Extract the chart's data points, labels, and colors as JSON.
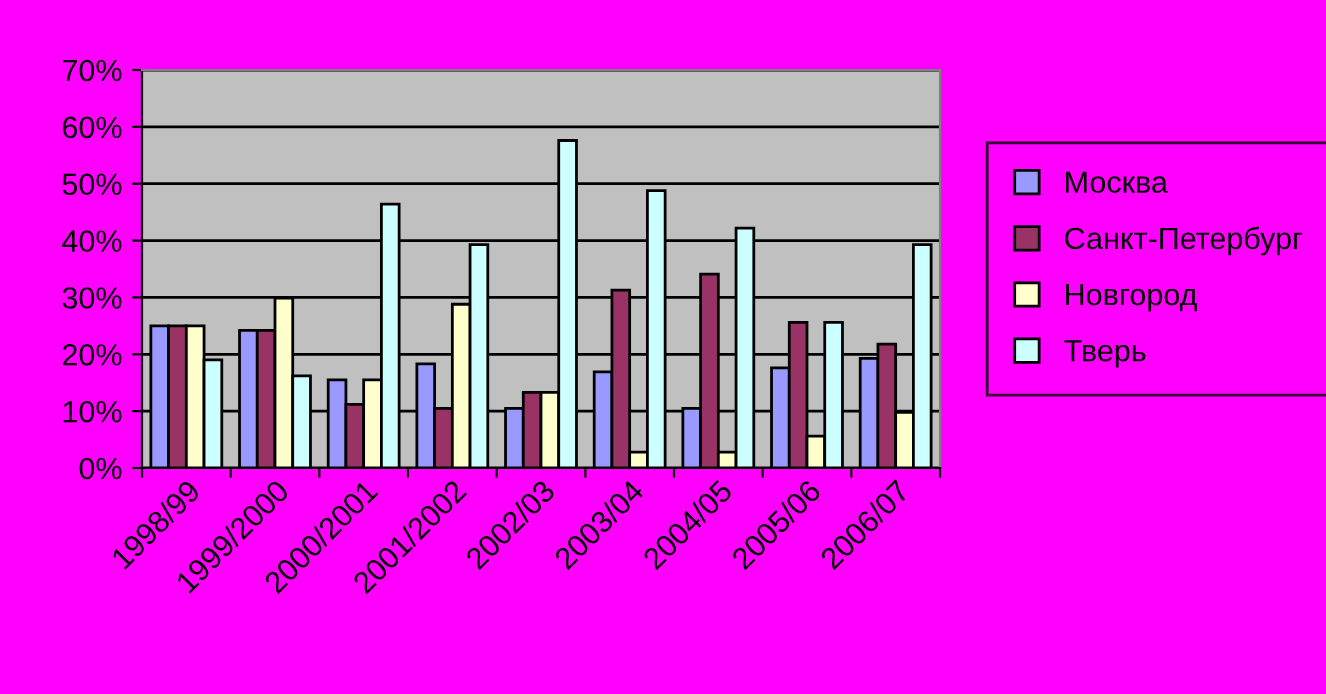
{
  "chart_data": {
    "type": "bar",
    "categories": [
      "1998/99",
      "1999/2000",
      "2000/2001",
      "2001/2002",
      "2002/03",
      "2003/04",
      "2004/05",
      "2005/06",
      "2006/07"
    ],
    "series": [
      {
        "name": "Москва",
        "color": "#9999ff",
        "values": [
          25,
          24.2,
          15.5,
          18.3,
          10.5,
          16.9,
          10.5,
          17.6,
          19.3
        ]
      },
      {
        "name": "Санкт-Петербург",
        "color": "#993366",
        "values": [
          25,
          24.2,
          11.2,
          10.5,
          13.3,
          31.3,
          34.1,
          25.6,
          21.8
        ]
      },
      {
        "name": "Новгород",
        "color": "#ffffcc",
        "values": [
          25,
          29.9,
          15.5,
          28.8,
          13.3,
          2.8,
          2.8,
          5.6,
          9.8
        ]
      },
      {
        "name": "Тверь",
        "color": "#ccffff",
        "values": [
          19,
          16.2,
          46.4,
          39.3,
          57.6,
          48.8,
          42.2,
          25.6,
          39.3
        ]
      }
    ],
    "ylim": [
      0,
      70
    ],
    "yticks": [
      {
        "value": 0,
        "label": "0%"
      },
      {
        "value": 10,
        "label": "10%"
      },
      {
        "value": 20,
        "label": "20%"
      },
      {
        "value": 30,
        "label": "30%"
      },
      {
        "value": 40,
        "label": "40%"
      },
      {
        "value": 50,
        "label": "50%"
      },
      {
        "value": 60,
        "label": "60%"
      },
      {
        "value": 70,
        "label": "70%"
      }
    ],
    "grid": "y",
    "legend": "right"
  }
}
